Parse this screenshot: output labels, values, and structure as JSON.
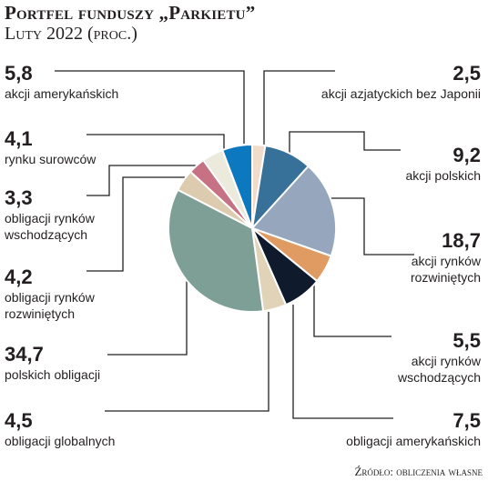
{
  "header": {
    "title": "Portfel funduszy „Parkietu”",
    "subtitle": "Luty 2022 (proc.)"
  },
  "footer": {
    "source": "Źródło: obliczenia własne"
  },
  "chart_data": {
    "type": "pie",
    "title": "Portfel funduszy „Parkietu”",
    "subtitle": "Luty 2022 (proc.)",
    "slices": [
      {
        "label": "akcji azjatyckich bez Japonii",
        "value": 2.5,
        "value_text": "2,5",
        "color": "#f1dccc"
      },
      {
        "label": "akcji polskich",
        "value": 9.2,
        "value_text": "9,2",
        "color": "#37719a"
      },
      {
        "label": "akcji rynków\nrozwiniętych",
        "value": 18.7,
        "value_text": "18,7",
        "color": "#96a6bd"
      },
      {
        "label": "akcji rynków\nwschodzących",
        "value": 5.5,
        "value_text": "5,5",
        "color": "#e09b62"
      },
      {
        "label": "obligacji amerykańskich",
        "value": 7.5,
        "value_text": "7,5",
        "color": "#0f1a2d"
      },
      {
        "label": "obligacji globalnych",
        "value": 4.5,
        "value_text": "4,5",
        "color": "#e0d3b8"
      },
      {
        "label": "polskich obligacji",
        "value": 34.7,
        "value_text": "34,7",
        "color": "#7e9f96"
      },
      {
        "label": "obligacji rynków\nrozwiniętych",
        "value": 4.2,
        "value_text": "4,2",
        "color": "#dccbae"
      },
      {
        "label": "obligacji rynków\nwschodzących",
        "value": 3.3,
        "value_text": "3,3",
        "color": "#c77184"
      },
      {
        "label": "rynku surowców",
        "value": 4.1,
        "value_text": "4,1",
        "color": "#ece9dd"
      },
      {
        "label": "akcji amerykańskich",
        "value": 5.8,
        "value_text": "5,8",
        "color": "#0b78c0"
      }
    ]
  }
}
